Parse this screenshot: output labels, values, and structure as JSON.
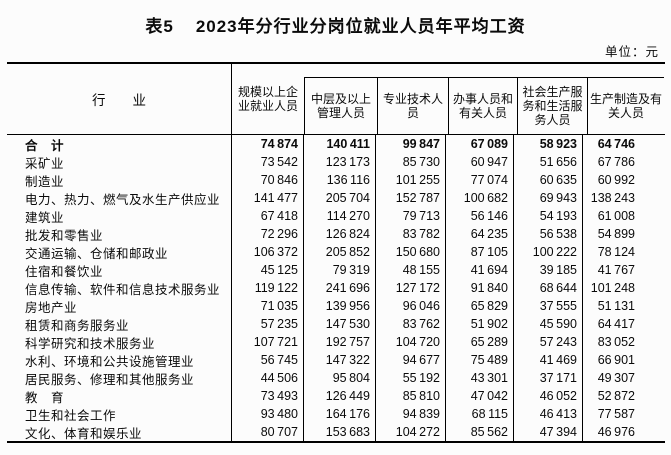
{
  "header": {
    "table_no": "表5",
    "title": "2023年分行业分岗位就业人员年平均工资",
    "unit": "单位：元"
  },
  "table": {
    "columns": [
      "行　　业",
      "规模以上企业就业人员",
      "中层及以上管理人员",
      "专业技术人员",
      "办事人员和有关人员",
      "社会生产服务和生活服务人员",
      "生产制造及有关人员"
    ],
    "rows": [
      {
        "industry": "合　计",
        "bold": true,
        "values": [
          74874,
          140411,
          99847,
          67089,
          58923,
          64746
        ]
      },
      {
        "industry": "采矿业",
        "bold": false,
        "values": [
          73542,
          123173,
          85730,
          60947,
          51656,
          67786
        ]
      },
      {
        "industry": "制造业",
        "bold": false,
        "values": [
          70846,
          136116,
          101255,
          77074,
          60635,
          60992
        ]
      },
      {
        "industry": "电力、热力、燃气及水生产供应业",
        "bold": false,
        "values": [
          141477,
          205704,
          152787,
          100682,
          69943,
          138243
        ]
      },
      {
        "industry": "建筑业",
        "bold": false,
        "values": [
          67418,
          114270,
          79713,
          56146,
          54193,
          61008
        ]
      },
      {
        "industry": "批发和零售业",
        "bold": false,
        "values": [
          72296,
          126824,
          83782,
          64235,
          56538,
          54899
        ]
      },
      {
        "industry": "交通运输、仓储和邮政业",
        "bold": false,
        "values": [
          106372,
          205852,
          150680,
          87105,
          100222,
          78124
        ]
      },
      {
        "industry": "住宿和餐饮业",
        "bold": false,
        "values": [
          45125,
          79319,
          48155,
          41694,
          39185,
          41767
        ]
      },
      {
        "industry": "信息传输、软件和信息技术服务业",
        "bold": false,
        "values": [
          119122,
          241696,
          127172,
          91840,
          68644,
          101248
        ]
      },
      {
        "industry": "房地产业",
        "bold": false,
        "values": [
          71035,
          139956,
          96046,
          65829,
          37555,
          51131
        ]
      },
      {
        "industry": "租赁和商务服务业",
        "bold": false,
        "values": [
          57235,
          147530,
          83762,
          51902,
          45590,
          64417
        ]
      },
      {
        "industry": "科学研究和技术服务业",
        "bold": false,
        "values": [
          107721,
          192757,
          104720,
          65289,
          57243,
          83052
        ]
      },
      {
        "industry": "水利、环境和公共设施管理业",
        "bold": false,
        "values": [
          56745,
          147322,
          94677,
          75489,
          41469,
          66901
        ]
      },
      {
        "industry": "居民服务、修理和其他服务业",
        "bold": false,
        "values": [
          44506,
          95804,
          55192,
          43301,
          37171,
          49307
        ]
      },
      {
        "industry": "教　育",
        "bold": false,
        "values": [
          73493,
          126449,
          85810,
          47042,
          46052,
          52872
        ]
      },
      {
        "industry": "卫生和社会工作",
        "bold": false,
        "values": [
          93480,
          164176,
          94839,
          68115,
          46413,
          77587
        ]
      },
      {
        "industry": "文化、体育和娱乐业",
        "bold": false,
        "values": [
          80707,
          153683,
          104272,
          85562,
          47394,
          46976
        ]
      }
    ]
  }
}
